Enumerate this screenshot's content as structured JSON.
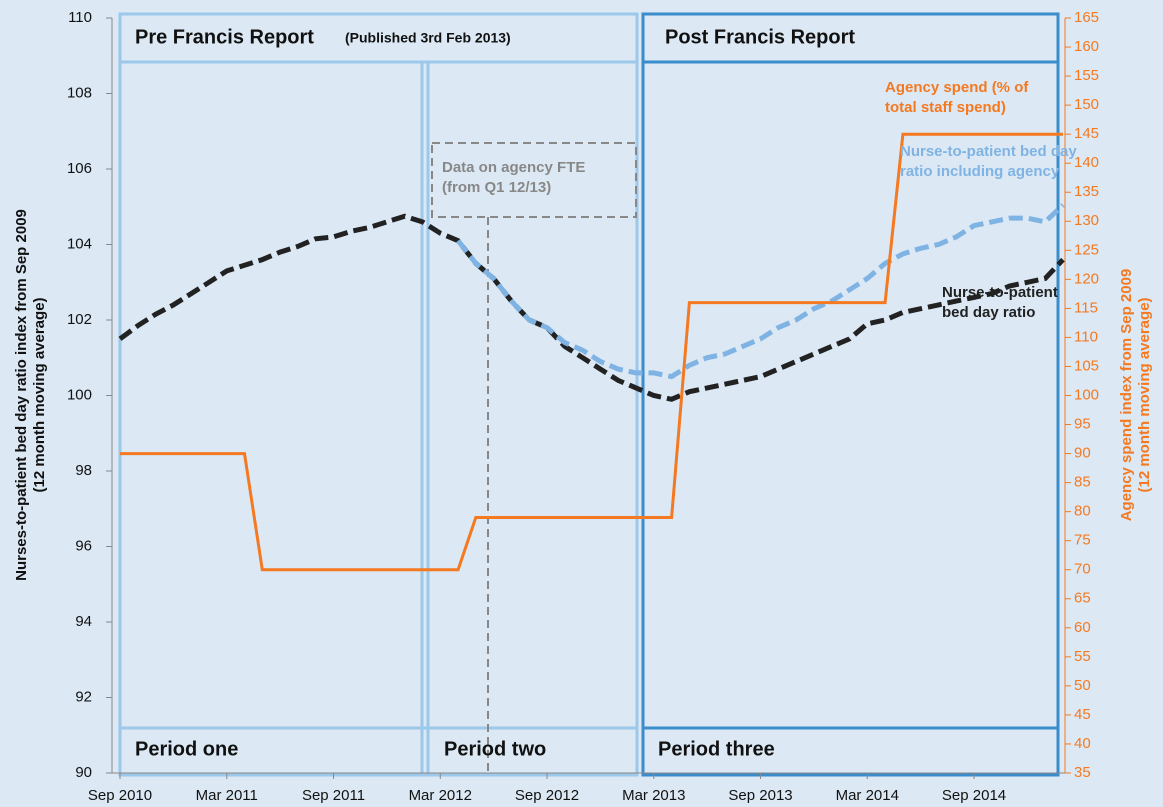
{
  "chart_data": {
    "type": "line",
    "ylabel": [
      "Nurses-to-patient  bed day ratio index  from Sep 2009",
      "(12 month moving average)"
    ],
    "y2label": [
      "Agency  spend index  from Sep 2009",
      "(12 month moving average)"
    ],
    "annotations": [
      "Pre Francis Report",
      "(Published 3rd Feb 2013)",
      "Post Francis Report",
      "Period one",
      "Period two",
      "Period three",
      "Data on agency FTE (from Q1 12/13)"
    ],
    "x": [
      "2010-09",
      "2010-10",
      "2010-11",
      "2010-12",
      "2011-01",
      "2011-02",
      "2011-03",
      "2011-04",
      "2011-05",
      "2011-06",
      "2011-07",
      "2011-08",
      "2011-09",
      "2011-10",
      "2011-11",
      "2011-12",
      "2012-01",
      "2012-02",
      "2012-03",
      "2012-04",
      "2012-05",
      "2012-06",
      "2012-07",
      "2012-08",
      "2012-09",
      "2012-10",
      "2012-11",
      "2012-12",
      "2013-01",
      "2013-02",
      "2013-03",
      "2013-04",
      "2013-05",
      "2013-06",
      "2013-07",
      "2013-08",
      "2013-09",
      "2013-10",
      "2013-11",
      "2013-12",
      "2014-01",
      "2014-02",
      "2014-03",
      "2014-04",
      "2014-05",
      "2014-06",
      "2014-07",
      "2014-08",
      "2014-09",
      "2014-10",
      "2014-11",
      "2014-12",
      "2015-01",
      "2015-02"
    ],
    "series": [
      {
        "name": "Nurse-to-patient bed day ratio",
        "color": "#222222",
        "dashed": true,
        "values": [
          101.5,
          101.85,
          102.15,
          102.4,
          102.7,
          103.0,
          103.3,
          103.45,
          103.6,
          103.8,
          103.95,
          104.15,
          104.2,
          104.35,
          104.45,
          104.6,
          104.75,
          104.6,
          104.3,
          104.1,
          103.5,
          103.1,
          102.5,
          102.0,
          101.8,
          101.3,
          101.0,
          100.7,
          100.4,
          100.2,
          100.0,
          99.9,
          100.1,
          100.2,
          100.3,
          100.4,
          100.5,
          100.7,
          100.9,
          101.1,
          101.3,
          101.5,
          101.9,
          102.0,
          102.2,
          102.3,
          102.4,
          102.5,
          102.6,
          102.7,
          102.9,
          103.0,
          103.1,
          103.6
        ]
      },
      {
        "name": "Nurse-to-patient bed day ratio including agency",
        "color": "#7fb3e3",
        "dashed": true,
        "values": [
          null,
          null,
          null,
          null,
          null,
          null,
          null,
          null,
          null,
          null,
          null,
          null,
          null,
          null,
          null,
          null,
          null,
          null,
          null,
          104.1,
          103.5,
          103.1,
          102.5,
          102.0,
          101.8,
          101.4,
          101.2,
          100.9,
          100.7,
          100.6,
          100.6,
          100.5,
          100.8,
          101.0,
          101.1,
          101.3,
          101.5,
          101.8,
          102.0,
          102.3,
          102.5,
          102.8,
          103.1,
          103.5,
          103.75,
          103.9,
          104.0,
          104.2,
          104.5,
          104.6,
          104.7,
          104.7,
          104.6,
          105.05
        ]
      },
      {
        "name": "Agency spend (% of total staff spend)",
        "color": "#f47920",
        "dashed": false,
        "axis": "y2",
        "x": [
          "2010-09",
          "2011-04",
          "2011-05",
          "2012-04",
          "2012-05",
          "2013-04",
          "2013-05",
          "2014-04",
          "2014-05",
          "2015-02"
        ],
        "values": [
          90,
          90,
          70,
          70,
          79,
          79,
          116,
          116,
          145,
          145
        ]
      }
    ],
    "xlim": [
      "2010-09",
      "2015-02"
    ],
    "xticks": [
      {
        "value": "2010-09",
        "label": "Sep 2010"
      },
      {
        "value": "2011-03",
        "label": "Mar 2011"
      },
      {
        "value": "2011-09",
        "label": "Sep 2011"
      },
      {
        "value": "2012-03",
        "label": "Mar 2012"
      },
      {
        "value": "2012-09",
        "label": "Sep 2012"
      },
      {
        "value": "2013-03",
        "label": "Mar 2013"
      },
      {
        "value": "2013-09",
        "label": "Sep 2013"
      },
      {
        "value": "2014-03",
        "label": "Mar 2014"
      },
      {
        "value": "2014-09",
        "label": "Sep 2014"
      }
    ],
    "ylim": [
      90,
      110
    ],
    "yticks": [
      90,
      92,
      94,
      96,
      98,
      100,
      102,
      104,
      106,
      108,
      110
    ],
    "y2lim": [
      35,
      165
    ],
    "y2ticks": [
      35,
      40,
      45,
      50,
      55,
      60,
      65,
      70,
      75,
      80,
      85,
      90,
      95,
      100,
      105,
      110,
      115,
      120,
      125,
      130,
      135,
      140,
      145,
      150,
      155,
      160,
      165
    ],
    "y2color": "#f47920"
  }
}
